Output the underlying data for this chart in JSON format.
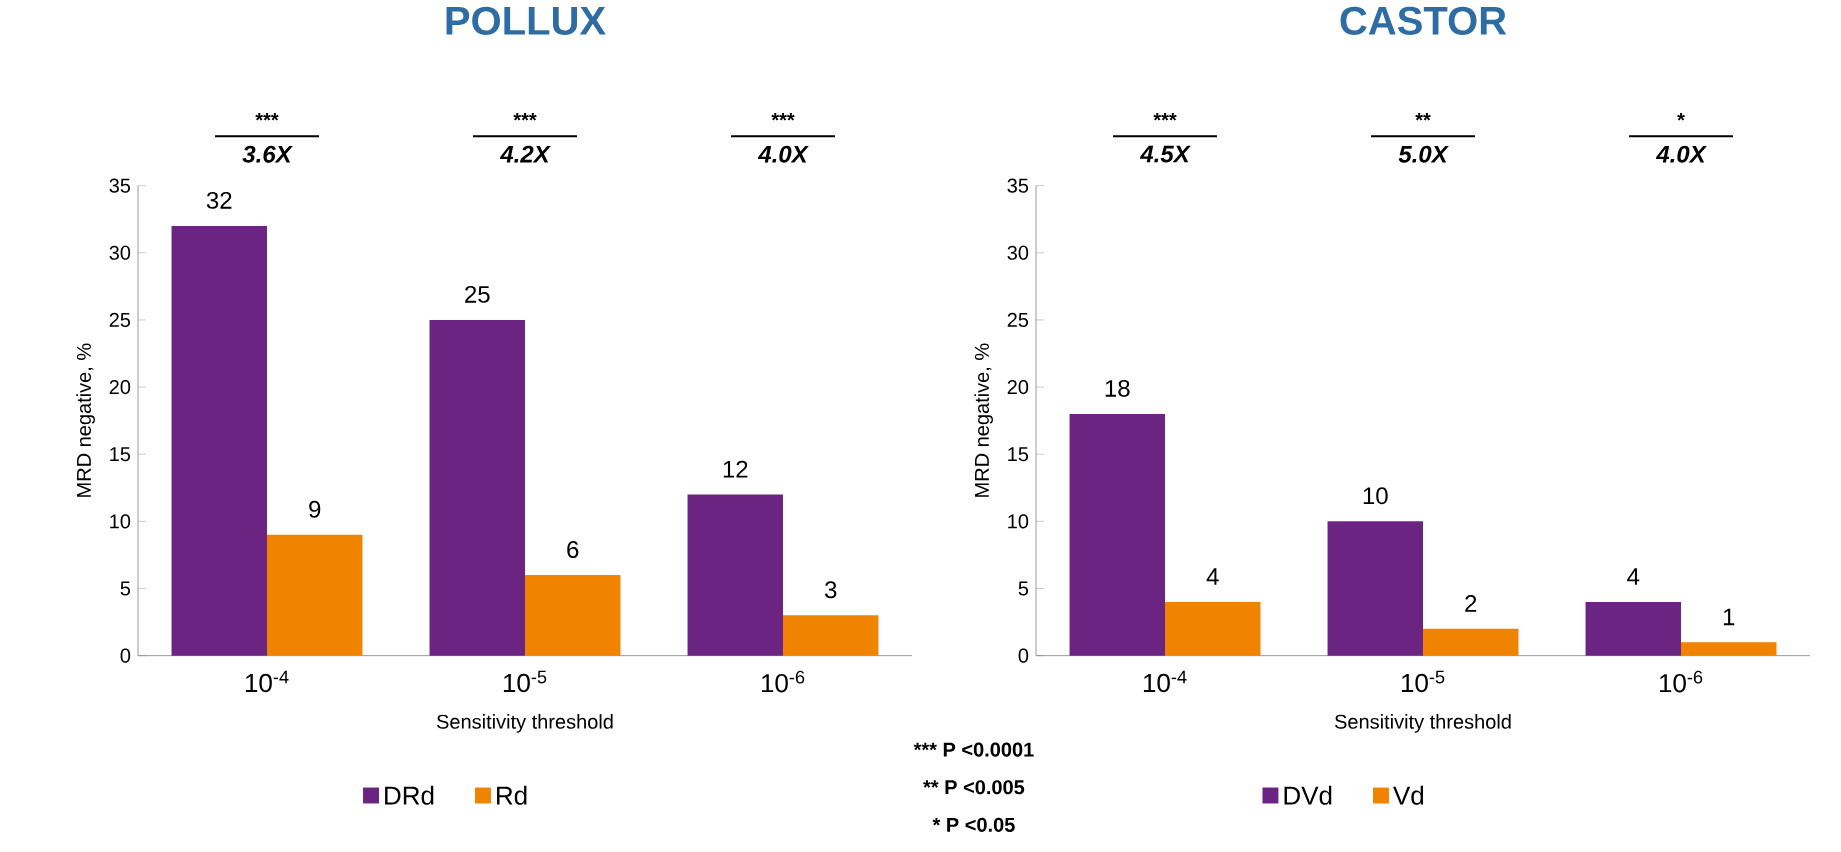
{
  "chart_data": [
    {
      "type": "bar",
      "title": "POLLUX",
      "xlabel": "Sensitivity threshold",
      "ylabel": "MRD negative, %",
      "categories": [
        "10$^{-4}$",
        "10$^{-5}$",
        "10$^{-6}$"
      ],
      "series": [
        {
          "name": "DRd",
          "color": "#6b2482",
          "values": [
            32,
            25,
            12
          ]
        },
        {
          "name": "Rd",
          "color": "#f08300",
          "values": [
            9,
            6,
            3
          ]
        }
      ],
      "ylim": [
        0,
        35
      ],
      "yticks": [
        0,
        5,
        10,
        15,
        20,
        25,
        30,
        35
      ],
      "data_labels": true,
      "legend": "bottom",
      "grid": false,
      "annotations": [
        "***",
        "3.6X",
        "***",
        "4.2X",
        "***",
        "4.0X",
        "*** P <0.0001",
        "** P <0.005",
        "* P <0.05"
      ]
    },
    {
      "type": "bar",
      "title": "CASTOR",
      "xlabel": "Sensitivity threshold",
      "ylabel": "MRD negative, %",
      "categories": [
        "10$^{-4}$",
        "10$^{-5}$",
        "10$^{-6}$"
      ],
      "series": [
        {
          "name": "DVd",
          "color": "#6b2482",
          "values": [
            18,
            10,
            4
          ]
        },
        {
          "name": "Vd",
          "color": "#f08300",
          "values": [
            4,
            2,
            1
          ]
        }
      ],
      "ylim": [
        0,
        35
      ],
      "yticks": [
        0,
        5,
        10,
        15,
        20,
        25,
        30,
        35
      ],
      "data_labels": true,
      "legend": "bottom",
      "grid": false,
      "annotations": [
        "***",
        "4.5X",
        "**",
        "5.0X",
        "*",
        "4.0X"
      ]
    }
  ]
}
